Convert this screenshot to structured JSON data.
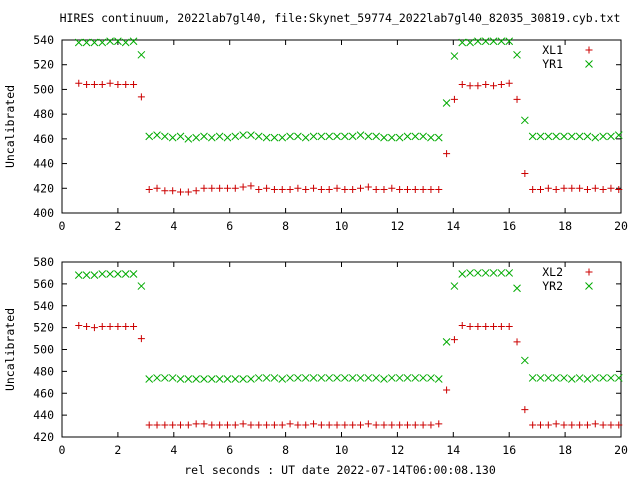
{
  "title": "HIRES continuum, 2022lab7gl40, file:Skynet_59774_2022lab7gl40_82035_30819.cyb.txt",
  "xlabel": "rel seconds : UT date 2022-07-14T06:00:08.130",
  "colors": {
    "red": "#cc0000",
    "green": "#00aa00"
  },
  "chart_data": [
    {
      "type": "scatter",
      "ylabel": "Uncalibrated",
      "xlim": [
        0,
        20
      ],
      "ylim": [
        400,
        540
      ],
      "xticks": [
        0,
        2,
        4,
        6,
        8,
        10,
        12,
        14,
        16,
        18,
        20
      ],
      "yticks": [
        400,
        420,
        440,
        460,
        480,
        500,
        520,
        540
      ],
      "grid": false,
      "legend": "top-right",
      "series": [
        {
          "name": "XL1",
          "marker": "+",
          "color": "#cc0000",
          "x": [
            0.6,
            0.88,
            1.16,
            1.44,
            1.72,
            2.0,
            2.28,
            2.56,
            2.84,
            3.12,
            3.4,
            3.68,
            3.96,
            4.24,
            4.52,
            4.8,
            5.08,
            5.36,
            5.64,
            5.92,
            6.2,
            6.48,
            6.76,
            7.04,
            7.32,
            7.6,
            7.88,
            8.16,
            8.44,
            8.72,
            9.0,
            9.28,
            9.56,
            9.84,
            10.12,
            10.4,
            10.68,
            10.96,
            11.24,
            11.52,
            11.8,
            12.08,
            12.36,
            12.64,
            12.92,
            13.2,
            13.48,
            13.76,
            14.04,
            14.32,
            14.6,
            14.88,
            15.16,
            15.44,
            15.72,
            16.0,
            16.28,
            16.56,
            16.84,
            17.12,
            17.4,
            17.68,
            17.96,
            18.24,
            18.52,
            18.8,
            19.08,
            19.36,
            19.64,
            19.92
          ],
          "y": [
            505,
            504,
            504,
            504,
            505,
            504,
            504,
            504,
            494,
            419,
            420,
            418,
            418,
            417,
            417,
            418,
            420,
            420,
            420,
            420,
            420,
            421,
            422,
            419,
            420,
            419,
            419,
            419,
            420,
            419,
            420,
            419,
            419,
            420,
            419,
            419,
            420,
            421,
            419,
            419,
            420,
            419,
            419,
            419,
            419,
            419,
            419,
            448,
            492,
            504,
            503,
            503,
            504,
            503,
            504,
            505,
            492,
            432,
            419,
            419,
            420,
            419,
            420,
            420,
            420,
            419,
            420,
            419,
            420,
            419
          ]
        },
        {
          "name": "YR1",
          "marker": "x",
          "color": "#00aa00",
          "x": [
            0.6,
            0.88,
            1.16,
            1.44,
            1.72,
            2.0,
            2.28,
            2.56,
            2.84,
            3.12,
            3.4,
            3.68,
            3.96,
            4.24,
            4.52,
            4.8,
            5.08,
            5.36,
            5.64,
            5.92,
            6.2,
            6.48,
            6.76,
            7.04,
            7.32,
            7.6,
            7.88,
            8.16,
            8.44,
            8.72,
            9.0,
            9.28,
            9.56,
            9.84,
            10.12,
            10.4,
            10.68,
            10.96,
            11.24,
            11.52,
            11.8,
            12.08,
            12.36,
            12.64,
            12.92,
            13.2,
            13.48,
            13.76,
            14.04,
            14.32,
            14.6,
            14.88,
            15.16,
            15.44,
            15.72,
            16.0,
            16.28,
            16.56,
            16.84,
            17.12,
            17.4,
            17.68,
            17.96,
            18.24,
            18.52,
            18.8,
            19.08,
            19.36,
            19.64,
            19.92
          ],
          "y": [
            538,
            538,
            538,
            538,
            539,
            539,
            538,
            539,
            528,
            462,
            463,
            462,
            461,
            462,
            460,
            461,
            462,
            461,
            462,
            461,
            462,
            463,
            463,
            462,
            461,
            461,
            461,
            462,
            462,
            461,
            462,
            462,
            462,
            462,
            462,
            462,
            463,
            462,
            462,
            461,
            461,
            461,
            462,
            462,
            462,
            461,
            461,
            489,
            527,
            538,
            538,
            539,
            539,
            539,
            539,
            539,
            528,
            475,
            462,
            462,
            462,
            462,
            462,
            462,
            462,
            462,
            461,
            462,
            462,
            463
          ]
        }
      ]
    },
    {
      "type": "scatter",
      "ylabel": "Uncalibrated",
      "xlim": [
        0,
        20
      ],
      "ylim": [
        420,
        580
      ],
      "xticks": [
        0,
        2,
        4,
        6,
        8,
        10,
        12,
        14,
        16,
        18,
        20
      ],
      "yticks": [
        420,
        440,
        460,
        480,
        500,
        520,
        540,
        560,
        580
      ],
      "grid": false,
      "legend": "top-right",
      "series": [
        {
          "name": "XL2",
          "marker": "+",
          "color": "#cc0000",
          "x": [
            0.6,
            0.88,
            1.16,
            1.44,
            1.72,
            2.0,
            2.28,
            2.56,
            2.84,
            3.12,
            3.4,
            3.68,
            3.96,
            4.24,
            4.52,
            4.8,
            5.08,
            5.36,
            5.64,
            5.92,
            6.2,
            6.48,
            6.76,
            7.04,
            7.32,
            7.6,
            7.88,
            8.16,
            8.44,
            8.72,
            9.0,
            9.28,
            9.56,
            9.84,
            10.12,
            10.4,
            10.68,
            10.96,
            11.24,
            11.52,
            11.8,
            12.08,
            12.36,
            12.64,
            12.92,
            13.2,
            13.48,
            13.76,
            14.04,
            14.32,
            14.6,
            14.88,
            15.16,
            15.44,
            15.72,
            16.0,
            16.28,
            16.56,
            16.84,
            17.12,
            17.4,
            17.68,
            17.96,
            18.24,
            18.52,
            18.8,
            19.08,
            19.36,
            19.64,
            19.92
          ],
          "y": [
            522,
            521,
            520,
            521,
            521,
            521,
            521,
            521,
            510,
            431,
            431,
            431,
            431,
            431,
            431,
            432,
            432,
            431,
            431,
            431,
            431,
            432,
            431,
            431,
            431,
            431,
            431,
            432,
            431,
            431,
            432,
            431,
            431,
            431,
            431,
            431,
            431,
            432,
            431,
            431,
            431,
            431,
            431,
            431,
            431,
            431,
            432,
            463,
            509,
            522,
            521,
            521,
            521,
            521,
            521,
            521,
            507,
            445,
            431,
            431,
            431,
            432,
            431,
            431,
            431,
            431,
            432,
            431,
            431,
            431
          ]
        },
        {
          "name": "YR2",
          "marker": "x",
          "color": "#00aa00",
          "x": [
            0.6,
            0.88,
            1.16,
            1.44,
            1.72,
            2.0,
            2.28,
            2.56,
            2.84,
            3.12,
            3.4,
            3.68,
            3.96,
            4.24,
            4.52,
            4.8,
            5.08,
            5.36,
            5.64,
            5.92,
            6.2,
            6.48,
            6.76,
            7.04,
            7.32,
            7.6,
            7.88,
            8.16,
            8.44,
            8.72,
            9.0,
            9.28,
            9.56,
            9.84,
            10.12,
            10.4,
            10.68,
            10.96,
            11.24,
            11.52,
            11.8,
            12.08,
            12.36,
            12.64,
            12.92,
            13.2,
            13.48,
            13.76,
            14.04,
            14.32,
            14.6,
            14.88,
            15.16,
            15.44,
            15.72,
            16.0,
            16.28,
            16.56,
            16.84,
            17.12,
            17.4,
            17.68,
            17.96,
            18.24,
            18.52,
            18.8,
            19.08,
            19.36,
            19.64,
            19.92
          ],
          "y": [
            568,
            568,
            568,
            569,
            569,
            569,
            569,
            569,
            558,
            473,
            474,
            474,
            474,
            473,
            473,
            473,
            473,
            473,
            473,
            473,
            473,
            473,
            473,
            474,
            474,
            474,
            473,
            474,
            474,
            474,
            474,
            474,
            474,
            474,
            474,
            474,
            474,
            474,
            474,
            473,
            474,
            474,
            474,
            474,
            474,
            474,
            473,
            507,
            558,
            569,
            570,
            570,
            570,
            570,
            570,
            570,
            556,
            490,
            474,
            474,
            474,
            474,
            474,
            473,
            474,
            473,
            474,
            474,
            474,
            474
          ]
        }
      ]
    }
  ]
}
